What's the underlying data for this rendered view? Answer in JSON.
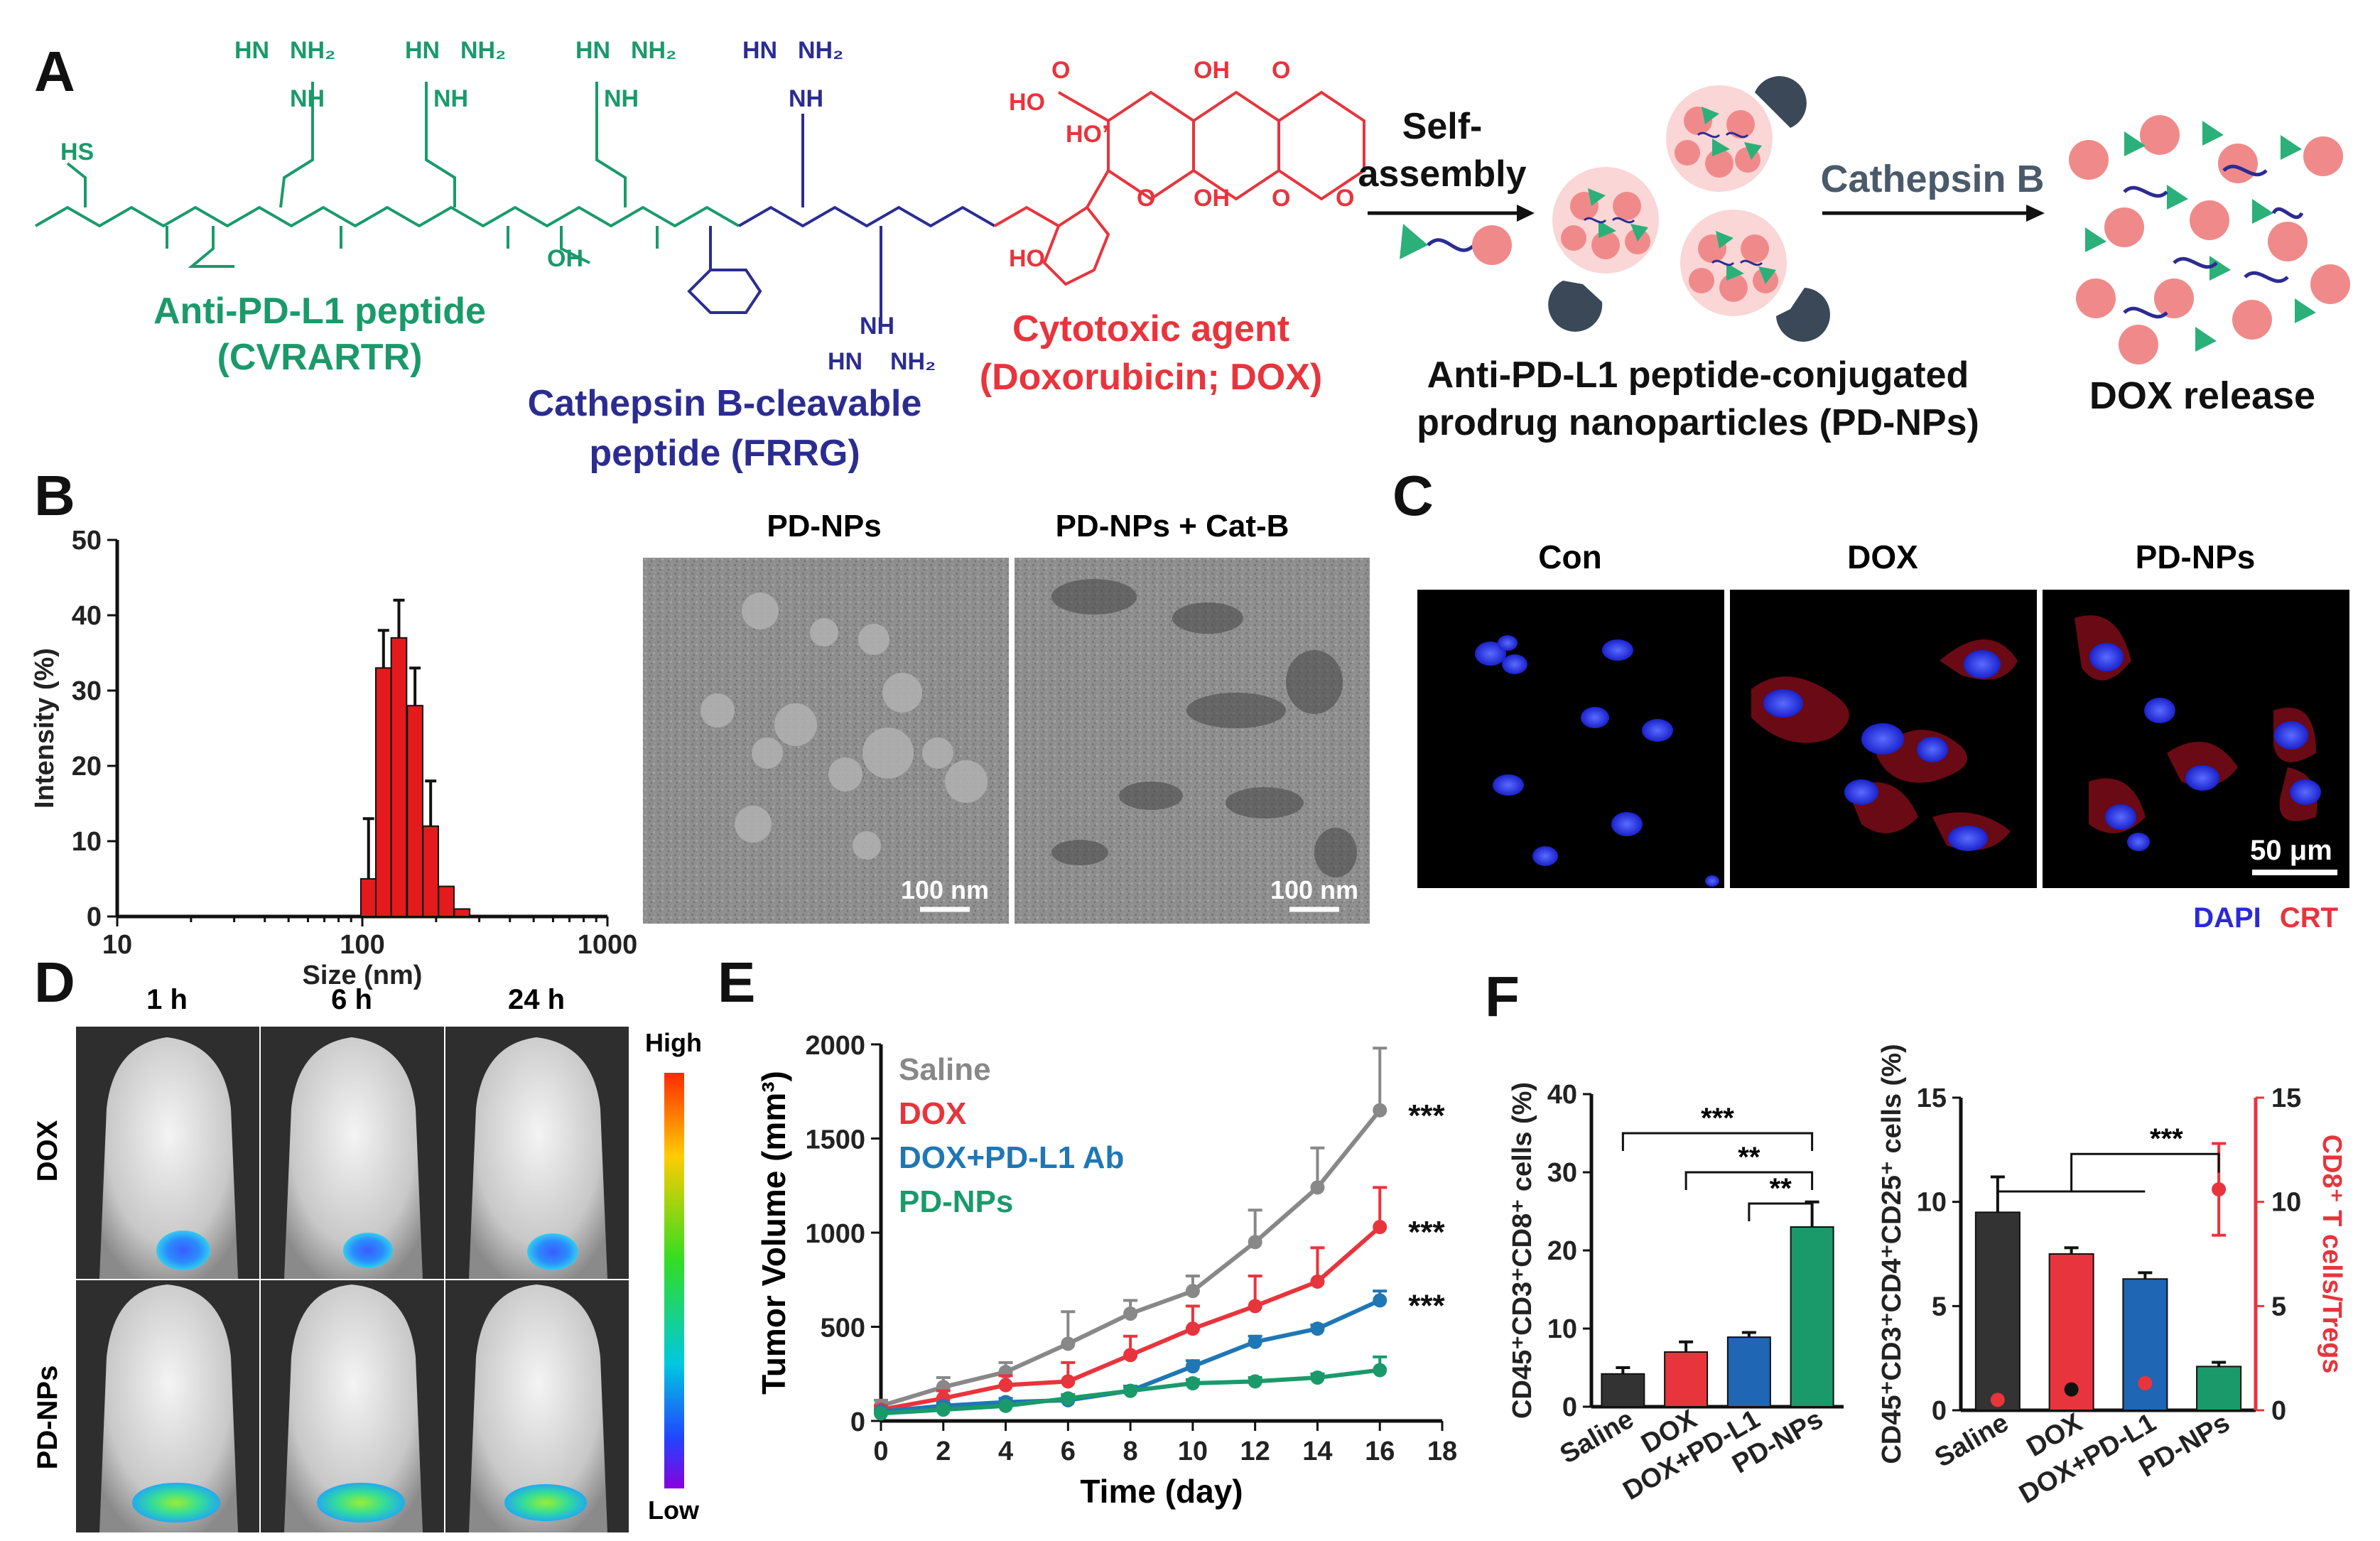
{
  "panels": {
    "a": "A",
    "b": "B",
    "c": "C",
    "d": "D",
    "e": "E",
    "f": "F"
  },
  "colors": {
    "green": "#1a9a6a",
    "blue": "#2b2c92",
    "red": "#e8343c",
    "slate": "#4a5a6a",
    "nanored": "#f08a8a",
    "nanogreen": "#2bb07a",
    "navy": "#3a4858"
  },
  "panel_a": {
    "peptide_label": [
      "Anti-PD-L1 peptide",
      "(CVRARTR)"
    ],
    "linker_label": [
      "Cathepsin B-cleavable",
      "peptide (FRRG)"
    ],
    "drug_label": [
      "Cytotoxic agent",
      "(Doxorubicin; DOX)"
    ],
    "self_assembly": [
      "Self-",
      "assembly"
    ],
    "cathepsin": "Cathepsin B",
    "nanoparticle_label": [
      "Anti-PD-L1 peptide-conjugated",
      "prodrug nanoparticles (PD-NPs)"
    ],
    "release_label": "DOX release",
    "atoms": {
      "nh2": "NH₂",
      "hn": "HN",
      "nh": "NH",
      "h": "H",
      "n": "N",
      "o": "O",
      "oh": "OH",
      "hs": "HS",
      "ho": "HO",
      "ho_prime": "HO’"
    }
  },
  "panel_b": {
    "chart_data": {
      "type": "bar",
      "xlabel": "Size (nm)",
      "ylabel": "Intensity (%)",
      "xscale": "log",
      "xlim": [
        10,
        1000
      ],
      "ylim": [
        0,
        50
      ],
      "yticks": [
        "0",
        "10",
        "20",
        "30",
        "40",
        "50"
      ],
      "xticks": [
        "10",
        "100",
        "1000"
      ],
      "x": [
        106,
        122,
        141,
        164,
        190,
        220,
        255
      ],
      "values": [
        5,
        33,
        37,
        28,
        12,
        4,
        1
      ],
      "errors": [
        8,
        5,
        5,
        5,
        6,
        0,
        0
      ]
    },
    "tem_labels": [
      "PD-NPs",
      "PD-NPs + Cat-B"
    ],
    "scale_bar": "100 nm"
  },
  "panel_c": {
    "titles": [
      "Con",
      "DOX",
      "PD-NPs"
    ],
    "scale_bar": "50 μm",
    "legend": [
      "DAPI",
      "CRT"
    ]
  },
  "panel_d": {
    "times": [
      "1 h",
      "6 h",
      "24 h"
    ],
    "rows": [
      "DOX",
      "PD-NPs"
    ],
    "colorbar": [
      "High",
      "Low"
    ]
  },
  "panel_e": {
    "chart_data": {
      "type": "line",
      "xlabel": "Time (day)",
      "ylabel": "Tumor Volume (mm³)",
      "xlim": [
        0,
        18
      ],
      "ylim": [
        0,
        2000
      ],
      "xticks": [
        "0",
        "2",
        "4",
        "6",
        "8",
        "10",
        "12",
        "14",
        "16",
        "18"
      ],
      "yticks": [
        "0",
        "500",
        "1000",
        "1500",
        "2000"
      ],
      "x": [
        0,
        2,
        4,
        6,
        8,
        10,
        12,
        14,
        16
      ],
      "series": [
        {
          "name": "Saline",
          "color": "#888888",
          "values": [
            80,
            180,
            260,
            410,
            570,
            690,
            950,
            1240,
            1650
          ],
          "errors": [
            30,
            50,
            50,
            170,
            70,
            80,
            170,
            210,
            330
          ]
        },
        {
          "name": "DOX",
          "color": "#e8343c",
          "values": [
            60,
            120,
            190,
            210,
            350,
            490,
            610,
            740,
            1030
          ],
          "errors": [
            20,
            40,
            50,
            100,
            100,
            120,
            160,
            180,
            210
          ]
        },
        {
          "name": "DOX+PD-L1 Ab",
          "color": "#1f77b4",
          "values": [
            50,
            80,
            100,
            110,
            160,
            290,
            420,
            490,
            640
          ],
          "errors": [
            10,
            15,
            20,
            20,
            25,
            30,
            30,
            20,
            50
          ]
        },
        {
          "name": "PD-NPs",
          "color": "#1a9a6a",
          "values": [
            40,
            60,
            80,
            120,
            160,
            200,
            210,
            230,
            270
          ],
          "errors": [
            10,
            10,
            15,
            20,
            20,
            20,
            20,
            20,
            70
          ]
        }
      ],
      "significance": [
        "***",
        "***",
        "***"
      ]
    }
  },
  "panel_f": {
    "left": {
      "chart_data": {
        "type": "bar",
        "categories": [
          "Saline",
          "DOX",
          "DOX+PD-L1",
          "PD-NPs"
        ],
        "values": [
          4.2,
          7.0,
          8.9,
          23.0
        ],
        "errors": [
          0.8,
          1.3,
          0.6,
          3.2
        ],
        "colors": [
          "#333333",
          "#e8343c",
          "#1f66b4",
          "#1a9a6a"
        ],
        "ylabel": "CD45⁺CD3⁺CD8⁺ cells (%)",
        "ylim": [
          0,
          40
        ],
        "yticks": [
          "0",
          "10",
          "20",
          "30",
          "40"
        ],
        "significance": [
          "***",
          "**",
          "**"
        ]
      }
    },
    "right": {
      "chart_data": {
        "type": "bar",
        "categories": [
          "Saline",
          "DOX",
          "DOX+PD-L1",
          "PD-NPs"
        ],
        "values": [
          9.5,
          7.5,
          6.3,
          2.1
        ],
        "errors": [
          1.7,
          0.3,
          0.3,
          0.2
        ],
        "ratio": [
          0.5,
          1.0,
          1.3,
          10.6
        ],
        "ratio_errors": [
          0,
          0,
          0,
          2.2
        ],
        "colors": [
          "#333333",
          "#e8343c",
          "#1f66b4",
          "#1a9a6a"
        ],
        "ylabel": "CD45⁺CD3⁺CD4⁺CD25⁺ cells (%)",
        "y2label": "CD8⁺ T cells/Tregs",
        "ylim": [
          0,
          15
        ],
        "y2lim": [
          0,
          15
        ],
        "yticks": [
          "0",
          "5",
          "10",
          "15"
        ],
        "y2ticks": [
          "0",
          "5",
          "10",
          "15"
        ],
        "significance": "***"
      }
    }
  }
}
